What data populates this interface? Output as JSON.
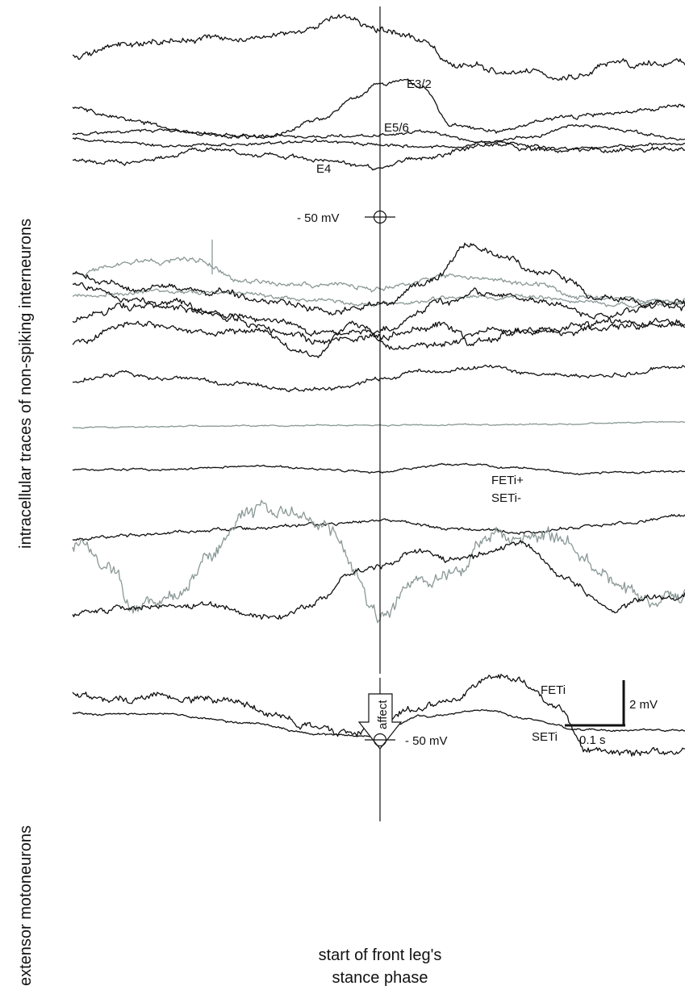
{
  "labels": {
    "left_top": "intracellular traces of non-spiking interneurons",
    "left_bottom": "extensor motoneurons",
    "e32": "E3/2",
    "e56": "E5/6",
    "e4": "E4",
    "ref_top": "- 50 mV",
    "ref_bottom": "- 50 mV",
    "feti_seti_1": "FETi+",
    "feti_seti_2": "SETi-",
    "feti": "FETi",
    "seti": "SETi",
    "arrow": "affect",
    "scale_v": "2 mV",
    "scale_t": "0.1 s",
    "bottom_1": "start of front leg's",
    "bottom_2": "stance phase"
  },
  "colors": {
    "black": "#111111",
    "gray": "#8a9896"
  },
  "traces": [
    {
      "group": "upper",
      "color": "black",
      "seed": 11,
      "amp": 6,
      "anchors": [
        [
          90,
          68
        ],
        [
          150,
          55
        ],
        [
          260,
          48
        ],
        [
          360,
          42
        ],
        [
          430,
          22
        ],
        [
          470,
          35
        ],
        [
          520,
          48
        ],
        [
          560,
          80
        ],
        [
          640,
          88
        ],
        [
          700,
          98
        ],
        [
          760,
          80
        ],
        [
          849,
          78
        ]
      ]
    },
    {
      "group": "upper",
      "color": "black",
      "seed": 23,
      "amp": 4,
      "anchors": [
        [
          90,
          132
        ],
        [
          160,
          150
        ],
        [
          250,
          166
        ],
        [
          330,
          170
        ],
        [
          400,
          148
        ],
        [
          440,
          122
        ],
        [
          470,
          103
        ],
        [
          500,
          100
        ],
        [
          525,
          108
        ],
        [
          560,
          155
        ],
        [
          620,
          162
        ],
        [
          700,
          146
        ],
        [
          760,
          140
        ],
        [
          849,
          132
        ]
      ]
    },
    {
      "group": "upper",
      "color": "black",
      "seed": 37,
      "amp": 3,
      "anchors": [
        [
          90,
          165
        ],
        [
          200,
          162
        ],
        [
          300,
          168
        ],
        [
          400,
          170
        ],
        [
          470,
          168
        ],
        [
          520,
          162
        ],
        [
          600,
          176
        ],
        [
          700,
          184
        ],
        [
          849,
          178
        ]
      ]
    },
    {
      "group": "upper",
      "color": "black",
      "seed": 41,
      "amp": 3,
      "anchors": [
        [
          90,
          172
        ],
        [
          200,
          180
        ],
        [
          300,
          178
        ],
        [
          400,
          175
        ],
        [
          470,
          180
        ],
        [
          560,
          182
        ],
        [
          650,
          170
        ],
        [
          720,
          155
        ],
        [
          849,
          172
        ]
      ]
    },
    {
      "group": "upper",
      "color": "black",
      "seed": 53,
      "amp": 4,
      "anchors": [
        [
          90,
          198
        ],
        [
          160,
          202
        ],
        [
          250,
          186
        ],
        [
          330,
          192
        ],
        [
          410,
          200
        ],
        [
          470,
          208
        ],
        [
          520,
          196
        ],
        [
          600,
          180
        ],
        [
          700,
          186
        ],
        [
          849,
          185
        ]
      ]
    },
    {
      "group": "middle",
      "color": "gray",
      "seed": 61,
      "amp": 5,
      "anchors": [
        [
          90,
          340
        ],
        [
          180,
          325
        ],
        [
          240,
          322
        ],
        [
          300,
          348
        ],
        [
          380,
          352
        ],
        [
          470,
          358
        ],
        [
          560,
          340
        ],
        [
          650,
          350
        ],
        [
          720,
          368
        ],
        [
          849,
          372
        ]
      ]
    },
    {
      "group": "middle",
      "color": "gray",
      "seed": 67,
      "amp": 4,
      "anchors": [
        [
          90,
          368
        ],
        [
          200,
          360
        ],
        [
          300,
          365
        ],
        [
          400,
          372
        ],
        [
          470,
          378
        ],
        [
          560,
          370
        ],
        [
          660,
          368
        ],
        [
          760,
          378
        ],
        [
          849,
          376
        ]
      ]
    },
    {
      "group": "middle",
      "color": "black",
      "seed": 71,
      "amp": 6,
      "anchors": [
        [
          90,
          340
        ],
        [
          180,
          358
        ],
        [
          260,
          360
        ],
        [
          330,
          372
        ],
        [
          420,
          385
        ],
        [
          470,
          378
        ],
        [
          540,
          345
        ],
        [
          580,
          302
        ],
        [
          620,
          318
        ],
        [
          680,
          340
        ],
        [
          760,
          372
        ],
        [
          849,
          380
        ]
      ]
    },
    {
      "group": "middle",
      "color": "black",
      "seed": 79,
      "amp": 6,
      "anchors": [
        [
          90,
          352
        ],
        [
          160,
          370
        ],
        [
          240,
          385
        ],
        [
          330,
          395
        ],
        [
          400,
          412
        ],
        [
          470,
          410
        ],
        [
          540,
          378
        ],
        [
          600,
          362
        ],
        [
          660,
          370
        ],
        [
          740,
          392
        ],
        [
          849,
          372
        ]
      ]
    },
    {
      "group": "middle",
      "color": "black",
      "seed": 83,
      "amp": 7,
      "anchors": [
        [
          90,
          398
        ],
        [
          160,
          380
        ],
        [
          230,
          378
        ],
        [
          290,
          395
        ],
        [
          350,
          410
        ],
        [
          400,
          425
        ],
        [
          470,
          418
        ],
        [
          540,
          400
        ],
        [
          590,
          425
        ],
        [
          650,
          410
        ],
        [
          730,
          402
        ],
        [
          849,
          400
        ]
      ]
    },
    {
      "group": "middle",
      "color": "black",
      "seed": 89,
      "amp": 6,
      "anchors": [
        [
          90,
          425
        ],
        [
          170,
          400
        ],
        [
          250,
          412
        ],
        [
          320,
          412
        ],
        [
          390,
          440
        ],
        [
          440,
          400
        ],
        [
          490,
          430
        ],
        [
          540,
          428
        ],
        [
          600,
          410
        ],
        [
          680,
          412
        ],
        [
          760,
          405
        ],
        [
          849,
          402
        ]
      ]
    },
    {
      "group": "middle",
      "color": "black",
      "seed": 97,
      "amp": 4,
      "anchors": [
        [
          90,
          472
        ],
        [
          140,
          462
        ],
        [
          210,
          470
        ],
        [
          300,
          475
        ],
        [
          380,
          485
        ],
        [
          430,
          478
        ],
        [
          470,
          470
        ],
        [
          520,
          462
        ],
        [
          600,
          455
        ],
        [
          680,
          465
        ],
        [
          760,
          465
        ],
        [
          849,
          453
        ]
      ]
    },
    {
      "group": "middle",
      "color": "gray",
      "seed": 101,
      "amp": 1.2,
      "anchors": [
        [
          90,
          530
        ],
        [
          300,
          528
        ],
        [
          470,
          527
        ],
        [
          650,
          526
        ],
        [
          849,
          523
        ]
      ]
    },
    {
      "group": "middle",
      "color": "black",
      "seed": 103,
      "amp": 2,
      "anchors": [
        [
          90,
          582
        ],
        [
          200,
          582
        ],
        [
          320,
          578
        ],
        [
          470,
          585
        ],
        [
          560,
          575
        ],
        [
          640,
          580
        ],
        [
          720,
          587
        ],
        [
          849,
          585
        ]
      ]
    },
    {
      "group": "middle",
      "color": "black",
      "seed": 107,
      "amp": 3,
      "anchors": [
        [
          90,
          668
        ],
        [
          180,
          662
        ],
        [
          300,
          655
        ],
        [
          400,
          650
        ],
        [
          470,
          645
        ],
        [
          560,
          655
        ],
        [
          640,
          660
        ],
        [
          760,
          650
        ],
        [
          849,
          638
        ]
      ]
    },
    {
      "group": "middle",
      "color": "gray",
      "seed": 109,
      "amp": 14,
      "anchors": [
        [
          90,
          680
        ],
        [
          130,
          700
        ],
        [
          170,
          755
        ],
        [
          220,
          738
        ],
        [
          250,
          700
        ],
        [
          300,
          640
        ],
        [
          360,
          635
        ],
        [
          410,
          660
        ],
        [
          440,
          710
        ],
        [
          470,
          765
        ],
        [
          520,
          725
        ],
        [
          570,
          710
        ],
        [
          600,
          668
        ],
        [
          650,
          670
        ],
        [
          700,
          668
        ],
        [
          730,
          700
        ],
        [
          770,
          730
        ],
        [
          800,
          745
        ],
        [
          849,
          740
        ]
      ]
    },
    {
      "group": "middle",
      "color": "black",
      "seed": 113,
      "amp": 6,
      "anchors": [
        [
          90,
          762
        ],
        [
          160,
          755
        ],
        [
          250,
          750
        ],
        [
          340,
          765
        ],
        [
          400,
          745
        ],
        [
          430,
          712
        ],
        [
          470,
          700
        ],
        [
          520,
          682
        ],
        [
          560,
          695
        ],
        [
          600,
          688
        ],
        [
          640,
          672
        ],
        [
          700,
          715
        ],
        [
          760,
          755
        ],
        [
          800,
          740
        ],
        [
          849,
          740
        ]
      ]
    },
    {
      "group": "lower",
      "color": "black",
      "seed": 127,
      "amp": 7,
      "anchors": [
        [
          90,
          860
        ],
        [
          150,
          868
        ],
        [
          220,
          865
        ],
        [
          280,
          868
        ],
        [
          340,
          885
        ],
        [
          380,
          900
        ],
        [
          420,
          910
        ],
        [
          460,
          908
        ],
        [
          500,
          880
        ],
        [
          560,
          868
        ],
        [
          610,
          840
        ],
        [
          640,
          845
        ],
        [
          690,
          875
        ],
        [
          730,
          930
        ],
        [
          770,
          935
        ],
        [
          849,
          930
        ]
      ]
    },
    {
      "group": "lower",
      "color": "black",
      "seed": 131,
      "amp": 2,
      "anchors": [
        [
          90,
          885
        ],
        [
          200,
          885
        ],
        [
          300,
          895
        ],
        [
          400,
          910
        ],
        [
          460,
          912
        ],
        [
          520,
          888
        ],
        [
          600,
          880
        ],
        [
          660,
          892
        ],
        [
          720,
          905
        ],
        [
          849,
          905
        ]
      ]
    }
  ]
}
